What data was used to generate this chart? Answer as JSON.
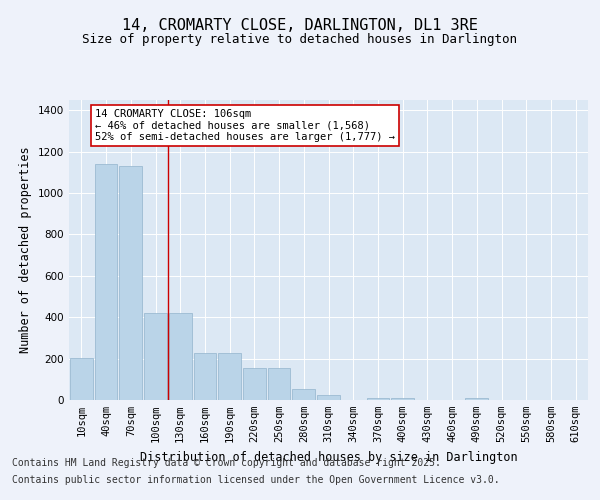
{
  "title_line1": "14, CROMARTY CLOSE, DARLINGTON, DL1 3RE",
  "title_line2": "Size of property relative to detached houses in Darlington",
  "xlabel": "Distribution of detached houses by size in Darlington",
  "ylabel": "Number of detached properties",
  "categories": [
    "10sqm",
    "40sqm",
    "70sqm",
    "100sqm",
    "130sqm",
    "160sqm",
    "190sqm",
    "220sqm",
    "250sqm",
    "280sqm",
    "310sqm",
    "340sqm",
    "370sqm",
    "400sqm",
    "430sqm",
    "460sqm",
    "490sqm",
    "520sqm",
    "550sqm",
    "580sqm",
    "610sqm"
  ],
  "values": [
    205,
    1140,
    1130,
    420,
    420,
    225,
    225,
    155,
    155,
    55,
    25,
    0,
    10,
    10,
    0,
    0,
    10,
    0,
    0,
    0,
    0
  ],
  "bar_color": "#bad4e8",
  "bar_edge_color": "#92b4cc",
  "vline_x_index": 3.5,
  "vline_color": "#cc0000",
  "annotation_text": "14 CROMARTY CLOSE: 106sqm\n← 46% of detached houses are smaller (1,568)\n52% of semi-detached houses are larger (1,777) →",
  "annotation_box_facecolor": "#ffffff",
  "annotation_box_edgecolor": "#cc0000",
  "ylim": [
    0,
    1450
  ],
  "yticks": [
    0,
    200,
    400,
    600,
    800,
    1000,
    1200,
    1400
  ],
  "background_color": "#eef2fa",
  "plot_bg_color": "#dce8f4",
  "grid_color": "#ffffff",
  "footer_line1": "Contains HM Land Registry data © Crown copyright and database right 2025.",
  "footer_line2": "Contains public sector information licensed under the Open Government Licence v3.0.",
  "title_fontsize": 11,
  "subtitle_fontsize": 9,
  "axis_label_fontsize": 8.5,
  "tick_fontsize": 7.5,
  "annotation_fontsize": 7.5,
  "footer_fontsize": 7
}
